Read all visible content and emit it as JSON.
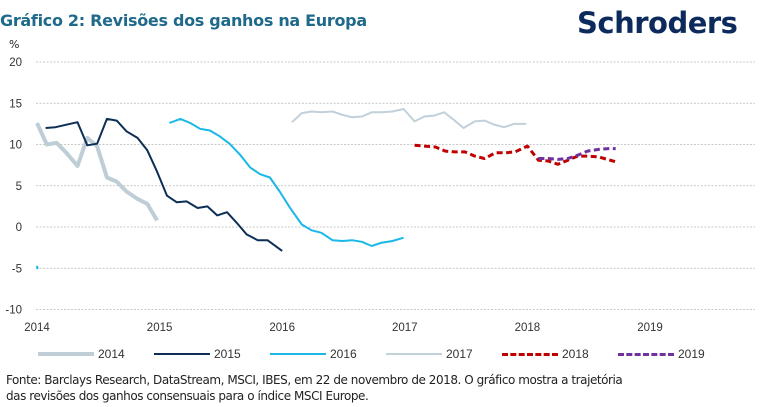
{
  "header": {
    "title": "Gráfico 2: Revisões dos ganhos na Europa",
    "logo": "Schroders"
  },
  "footer": {
    "source_line1": "Fonte: Barclays Research, DataStream, MSCI, IBES,  em 22 de novembro de 2018.  O gráfico mostra a trajetória",
    "source_line2": "das revisões dos ganhos consensuais para o índice MSCI Europe."
  },
  "chart_data": {
    "type": "line",
    "title": "Gráfico 2: Revisões dos ganhos na Europa",
    "xlabel": "",
    "ylabel": "%",
    "ylim": [
      -10,
      20
    ],
    "xlim": [
      2014,
      2019.85
    ],
    "yticks": [
      20,
      15,
      10,
      5,
      0,
      -5,
      -10
    ],
    "xticks": [
      2014,
      2015,
      2016,
      2017,
      2018,
      2019
    ],
    "grid": true,
    "legend_position": "bottom",
    "series": [
      {
        "name": "2014",
        "color": "#bfcdd6",
        "style": "solid-thick",
        "points": [
          [
            2014.0,
            12.6
          ],
          [
            2014.08,
            10.0
          ],
          [
            2014.16,
            10.2
          ],
          [
            2014.24,
            9.0
          ],
          [
            2014.33,
            7.4
          ],
          [
            2014.41,
            10.8
          ],
          [
            2014.49,
            9.8
          ],
          [
            2014.57,
            6.0
          ],
          [
            2014.65,
            5.5
          ],
          [
            2014.73,
            4.3
          ],
          [
            2014.82,
            3.4
          ],
          [
            2014.9,
            2.8
          ],
          [
            2014.98,
            0.8
          ]
        ]
      },
      {
        "name": "2015",
        "color": "#0d2f55",
        "style": "solid",
        "points": [
          [
            2014.07,
            12.0
          ],
          [
            2014.15,
            12.1
          ],
          [
            2014.24,
            12.4
          ],
          [
            2014.33,
            12.7
          ],
          [
            2014.41,
            9.9
          ],
          [
            2014.49,
            10.1
          ],
          [
            2014.57,
            13.1
          ],
          [
            2014.65,
            12.9
          ],
          [
            2014.73,
            11.6
          ],
          [
            2014.82,
            10.8
          ],
          [
            2014.9,
            9.3
          ],
          [
            2014.98,
            6.7
          ],
          [
            2015.06,
            3.8
          ],
          [
            2015.14,
            3.0
          ],
          [
            2015.22,
            3.1
          ],
          [
            2015.31,
            2.3
          ],
          [
            2015.39,
            2.5
          ],
          [
            2015.47,
            1.4
          ],
          [
            2015.55,
            1.8
          ],
          [
            2015.63,
            0.5
          ],
          [
            2015.71,
            -0.9
          ],
          [
            2015.8,
            -1.6
          ],
          [
            2015.88,
            -1.6
          ],
          [
            2016.0,
            -2.9
          ]
        ]
      },
      {
        "name": "2016",
        "color": "#19b8e8",
        "style": "solid",
        "points": [
          [
            2015.08,
            12.6
          ],
          [
            2015.17,
            13.1
          ],
          [
            2015.25,
            12.6
          ],
          [
            2015.33,
            11.9
          ],
          [
            2015.41,
            11.7
          ],
          [
            2015.49,
            11.0
          ],
          [
            2015.57,
            10.1
          ],
          [
            2015.66,
            8.7
          ],
          [
            2015.74,
            7.2
          ],
          [
            2015.82,
            6.4
          ],
          [
            2015.9,
            6.0
          ],
          [
            2015.98,
            4.3
          ],
          [
            2016.06,
            2.4
          ],
          [
            2016.16,
            0.3
          ],
          [
            2016.24,
            -0.4
          ],
          [
            2016.32,
            -0.7
          ],
          [
            2016.41,
            -1.6
          ],
          [
            2016.49,
            -1.7
          ],
          [
            2016.57,
            -1.6
          ],
          [
            2016.65,
            -1.8
          ],
          [
            2016.73,
            -2.3
          ],
          [
            2016.81,
            -1.9
          ],
          [
            2016.9,
            -1.7
          ],
          [
            2016.99,
            -1.3
          ]
        ]
      },
      {
        "name": "2017",
        "color": "#c2d0da",
        "style": "solid",
        "points": [
          [
            2016.08,
            12.7
          ],
          [
            2016.16,
            13.8
          ],
          [
            2016.24,
            14.0
          ],
          [
            2016.32,
            13.9
          ],
          [
            2016.41,
            14.0
          ],
          [
            2016.49,
            13.6
          ],
          [
            2016.57,
            13.3
          ],
          [
            2016.65,
            13.4
          ],
          [
            2016.73,
            13.9
          ],
          [
            2016.81,
            13.9
          ],
          [
            2016.9,
            14.0
          ],
          [
            2016.99,
            14.3
          ],
          [
            2017.08,
            12.8
          ],
          [
            2017.16,
            13.4
          ],
          [
            2017.24,
            13.5
          ],
          [
            2017.32,
            13.9
          ],
          [
            2017.4,
            13.0
          ],
          [
            2017.48,
            12.0
          ],
          [
            2017.57,
            12.8
          ],
          [
            2017.65,
            12.9
          ],
          [
            2017.73,
            12.4
          ],
          [
            2017.81,
            12.1
          ],
          [
            2017.89,
            12.5
          ],
          [
            2017.99,
            12.5
          ]
        ]
      },
      {
        "name": "2018",
        "color": "#c00000",
        "style": "dashed",
        "points": [
          [
            2017.08,
            9.9
          ],
          [
            2017.16,
            9.8
          ],
          [
            2017.25,
            9.7
          ],
          [
            2017.33,
            9.2
          ],
          [
            2017.41,
            9.1
          ],
          [
            2017.49,
            9.1
          ],
          [
            2017.57,
            8.6
          ],
          [
            2017.65,
            8.3
          ],
          [
            2017.74,
            9.0
          ],
          [
            2017.82,
            9.0
          ],
          [
            2017.9,
            9.1
          ],
          [
            2018.0,
            9.8
          ],
          [
            2018.09,
            8.1
          ],
          [
            2018.17,
            8.0
          ],
          [
            2018.25,
            7.6
          ],
          [
            2018.33,
            8.1
          ],
          [
            2018.41,
            8.6
          ],
          [
            2018.49,
            8.6
          ],
          [
            2018.58,
            8.5
          ],
          [
            2018.72,
            7.9
          ]
        ]
      },
      {
        "name": "2019",
        "color": "#7030a0",
        "style": "dashed",
        "points": [
          [
            2018.09,
            8.3
          ],
          [
            2018.17,
            8.3
          ],
          [
            2018.25,
            8.2
          ],
          [
            2018.33,
            8.3
          ],
          [
            2018.41,
            8.7
          ],
          [
            2018.49,
            9.2
          ],
          [
            2018.58,
            9.4
          ],
          [
            2018.66,
            9.5
          ],
          [
            2018.72,
            9.5
          ]
        ]
      },
      {
        "name": "2016-stub",
        "legend": false,
        "color": "#19b8e8",
        "style": "solid",
        "points": [
          [
            2014.0,
            -4.7
          ],
          [
            2014.005,
            -5.1
          ]
        ]
      }
    ]
  }
}
